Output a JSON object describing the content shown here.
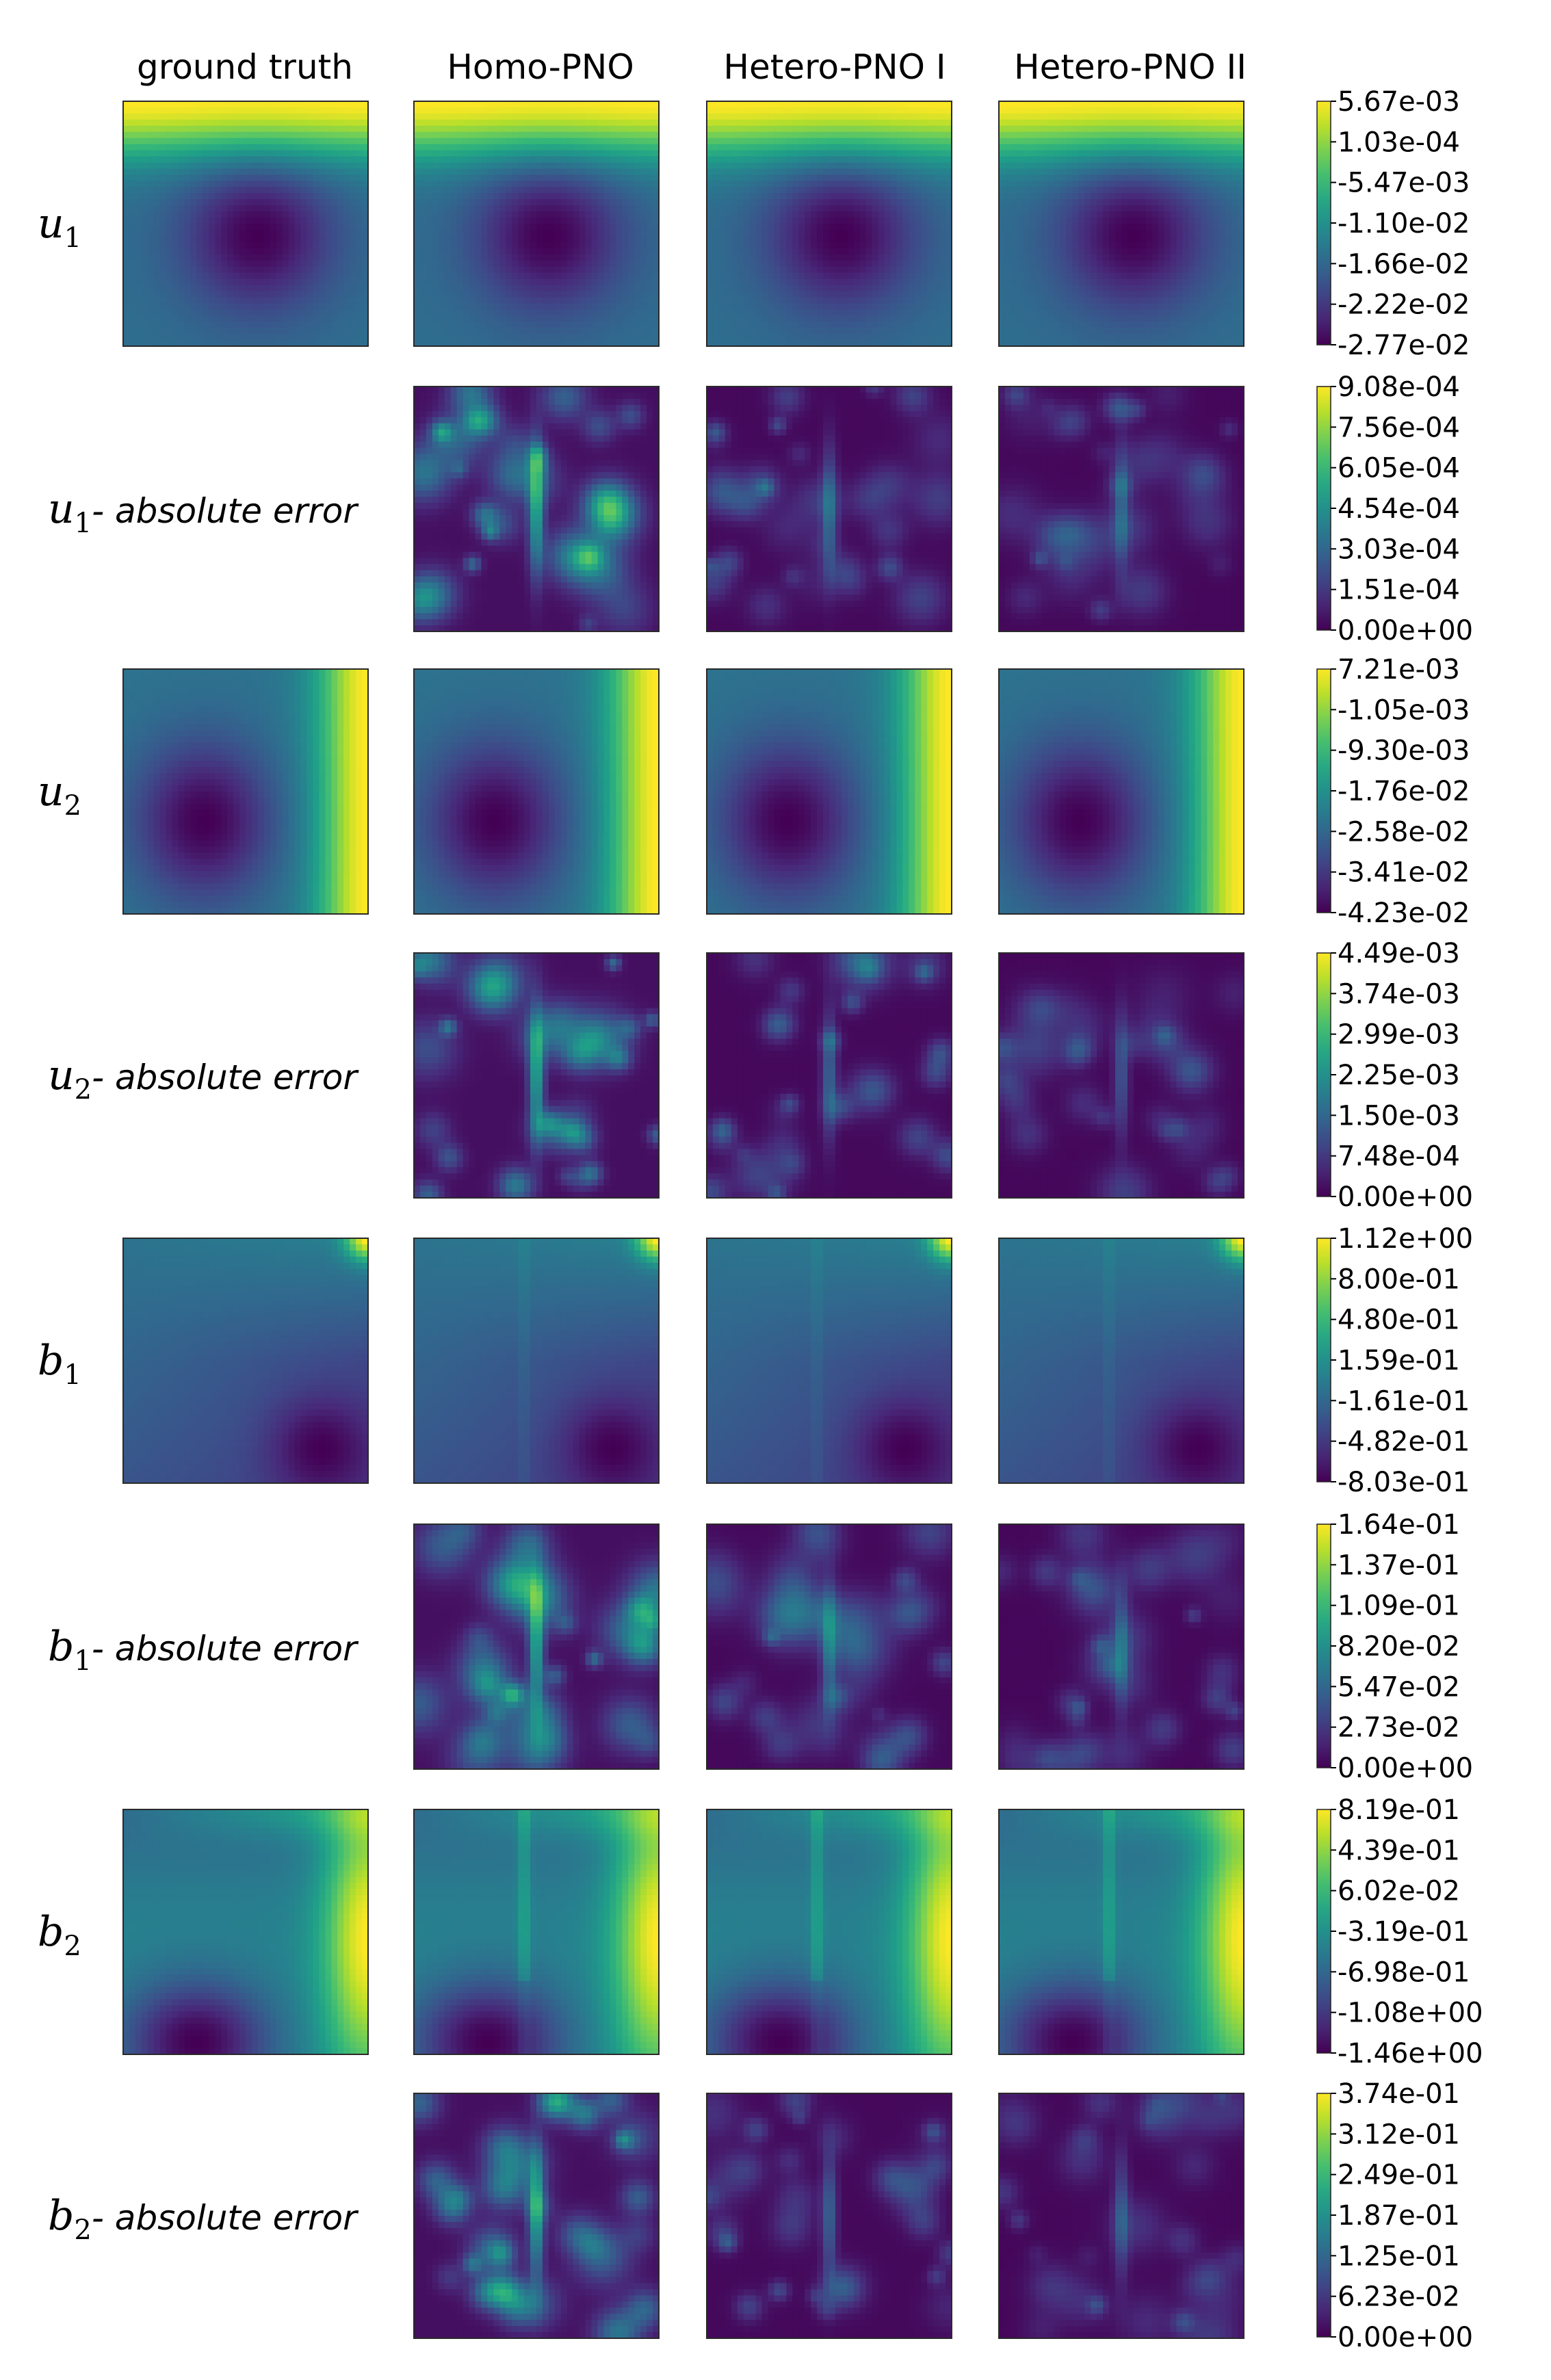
{
  "chart_data": {
    "type": "heatmap",
    "colormap": "viridis",
    "columns": [
      "ground truth",
      "Homo-PNO",
      "Hetero-PNO I",
      "Hetero-PNO II"
    ],
    "rows": [
      {
        "key": "u1",
        "var": "u",
        "sub": "1",
        "suffix": "",
        "cmap_ticks": [
          "5.67e-03",
          "1.03e-04",
          "-5.47e-03",
          "-1.10e-02",
          "-1.66e-02",
          "-2.22e-02",
          "-2.77e-02"
        ],
        "panels": [
          0,
          1,
          2,
          3
        ],
        "pattern": "u1"
      },
      {
        "key": "u1err",
        "var": "u",
        "sub": "1",
        "suffix": "- absolute error",
        "cmap_ticks": [
          "9.08e-04",
          "7.56e-04",
          "6.05e-04",
          "4.54e-04",
          "3.03e-04",
          "1.51e-04",
          "0.00e+00"
        ],
        "panels": [
          1,
          2,
          3
        ],
        "pattern": "err"
      },
      {
        "key": "u2",
        "var": "u",
        "sub": "2",
        "suffix": "",
        "cmap_ticks": [
          "7.21e-03",
          "-1.05e-03",
          "-9.30e-03",
          "-1.76e-02",
          "-2.58e-02",
          "-3.41e-02",
          "-4.23e-02"
        ],
        "panels": [
          0,
          1,
          2,
          3
        ],
        "pattern": "u2"
      },
      {
        "key": "u2err",
        "var": "u",
        "sub": "2",
        "suffix": "- absolute error",
        "cmap_ticks": [
          "4.49e-03",
          "3.74e-03",
          "2.99e-03",
          "2.25e-03",
          "1.50e-03",
          "7.48e-04",
          "0.00e+00"
        ],
        "panels": [
          1,
          2,
          3
        ],
        "pattern": "err"
      },
      {
        "key": "b1",
        "var": "b",
        "sub": "1",
        "suffix": "",
        "cmap_ticks": [
          "1.12e+00",
          "8.00e-01",
          "4.80e-01",
          "1.59e-01",
          "-1.61e-01",
          "-4.82e-01",
          "-8.03e-01"
        ],
        "panels": [
          0,
          1,
          2,
          3
        ],
        "pattern": "b1"
      },
      {
        "key": "b1err",
        "var": "b",
        "sub": "1",
        "suffix": "- absolute error",
        "cmap_ticks": [
          "1.64e-01",
          "1.37e-01",
          "1.09e-01",
          "8.20e-02",
          "5.47e-02",
          "2.73e-02",
          "0.00e+00"
        ],
        "panels": [
          1,
          2,
          3
        ],
        "pattern": "err"
      },
      {
        "key": "b2",
        "var": "b",
        "sub": "2",
        "suffix": "",
        "cmap_ticks": [
          "8.19e-01",
          "4.39e-01",
          "6.02e-02",
          "-3.19e-01",
          "-6.98e-01",
          "-1.08e+00",
          "-1.46e+00"
        ],
        "panels": [
          0,
          1,
          2,
          3
        ],
        "pattern": "b2"
      },
      {
        "key": "b2err",
        "var": "b",
        "sub": "2",
        "suffix": "- absolute error",
        "cmap_ticks": [
          "3.74e-01",
          "3.12e-01",
          "2.49e-01",
          "1.87e-01",
          "1.25e-01",
          "6.23e-02",
          "0.00e+00"
        ],
        "panels": [
          1,
          2,
          3
        ],
        "pattern": "err"
      }
    ]
  }
}
